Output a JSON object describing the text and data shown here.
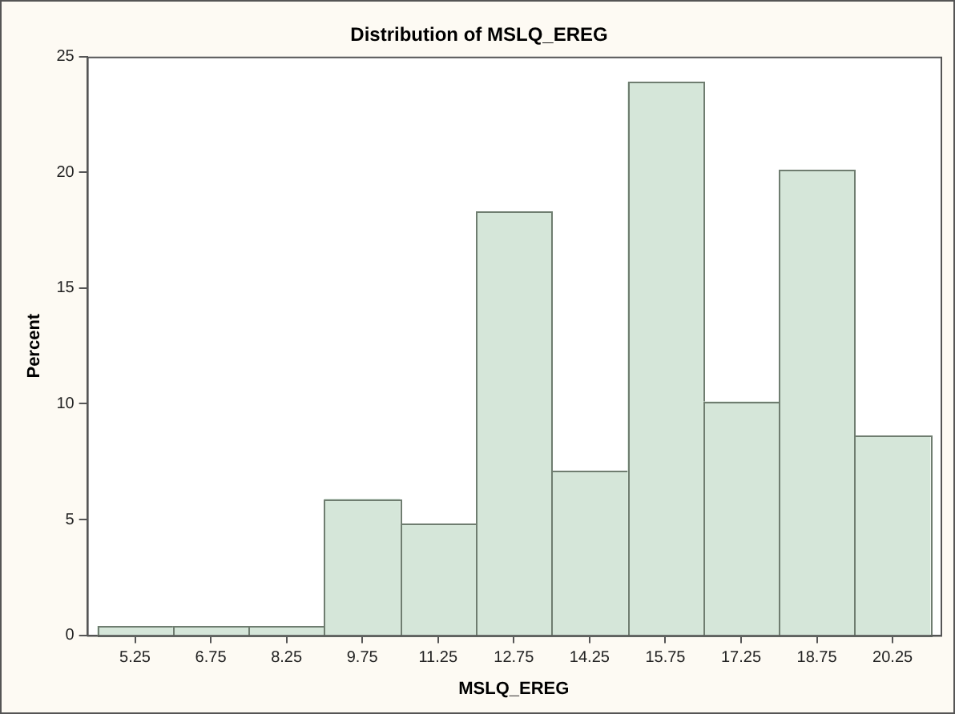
{
  "chart_data": {
    "type": "histogram",
    "title": "Distribution of MSLQ_EREG",
    "xlabel": "MSLQ_EREG",
    "ylabel": "Percent",
    "bins": [
      4.5,
      6,
      7.5,
      9,
      10.5,
      12,
      13.5,
      15,
      16.5,
      18,
      19.5,
      21
    ],
    "values": [
      0.4,
      0.4,
      0.4,
      5.9,
      4.8,
      18.3,
      7.1,
      23.9,
      10.1,
      20.1,
      8.6
    ],
    "color": "#d5e6d9",
    "xlim": [
      4.3,
      21.2
    ],
    "xticks": [
      5.25,
      6.75,
      8.25,
      9.75,
      11.25,
      12.75,
      14.25,
      15.75,
      17.25,
      18.75,
      20.25
    ],
    "ylim": [
      0,
      25
    ],
    "yticks": [
      0,
      5,
      10,
      15,
      20,
      25
    ]
  }
}
